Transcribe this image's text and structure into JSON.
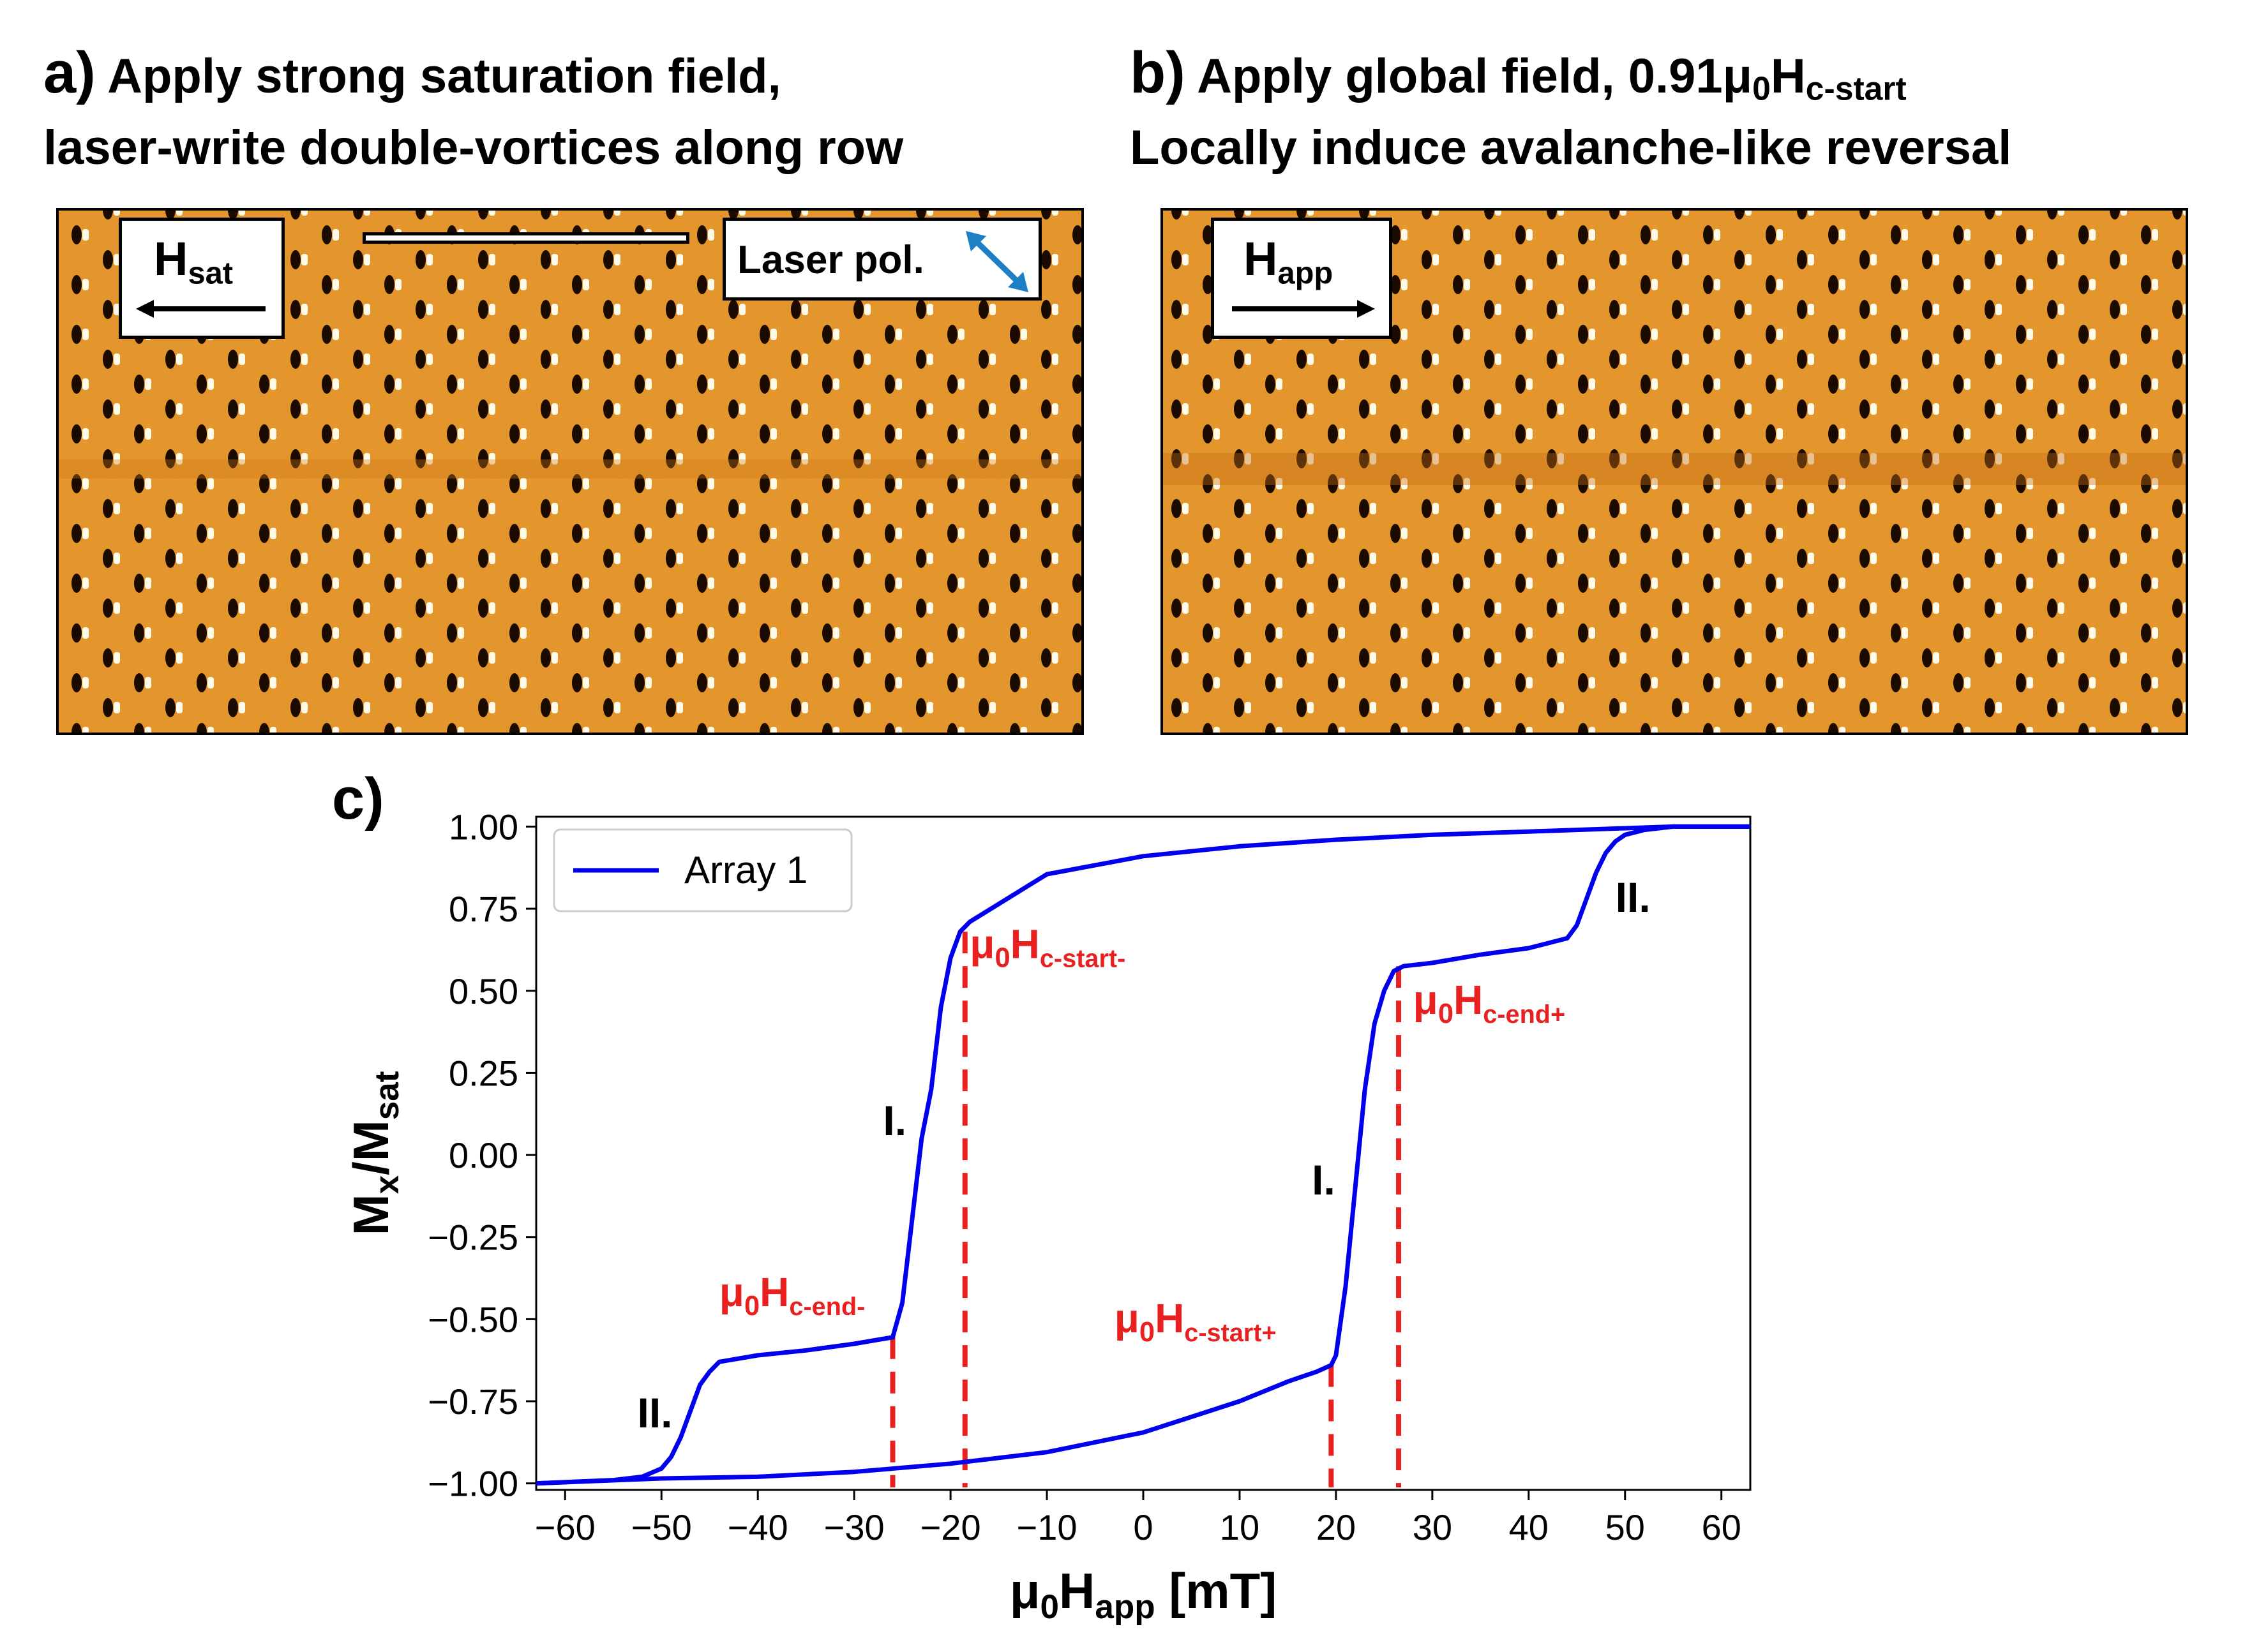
{
  "panel_a": {
    "letter": "a)",
    "line1": "Apply strong saturation field,",
    "line2": "laser-write double-vortices along row",
    "field_symbol": "H",
    "field_sub": "sat",
    "laser_label": "Laser pol."
  },
  "panel_b": {
    "letter": "b)",
    "line1_text": "Apply global field, 0.91μ",
    "line1_sub0": "0",
    "line1_H": "H",
    "line1_sub": "c-start",
    "line2": "Locally induce avalanche-like reversal",
    "field_symbol": "H",
    "field_sub": "app"
  },
  "panel_c": {
    "letter": "c)"
  },
  "colors": {
    "curve": "#0000ee",
    "dashed": "#e82020",
    "annotation_red": "#e82020",
    "microscope_bg": "#e8962a",
    "arrow_blue": "#1f7fc4"
  },
  "chart_data": {
    "type": "line",
    "xlabel_mu": "μ",
    "xlabel_sub0": "0",
    "xlabel_H": "H",
    "xlabel_sub": "app",
    "xlabel_unit": " [mT]",
    "ylabel_M": "M",
    "ylabel_x": "x",
    "ylabel_slash": "/M",
    "ylabel_sat": "sat",
    "xlim": [
      -63,
      63
    ],
    "ylim": [
      -1.02,
      1.03
    ],
    "xticks": [
      -60,
      -50,
      -40,
      -30,
      -20,
      -10,
      0,
      10,
      20,
      30,
      40,
      50,
      60
    ],
    "xtick_labels": [
      "−60",
      "−50",
      "−40",
      "−30",
      "−20",
      "−10",
      "0",
      "10",
      "20",
      "30",
      "40",
      "50",
      "60"
    ],
    "yticks": [
      -1.0,
      -0.75,
      -0.5,
      -0.25,
      0.0,
      0.25,
      0.5,
      0.75,
      1.0
    ],
    "ytick_labels": [
      "−1.00",
      "−0.75",
      "−0.50",
      "−0.25",
      "0.00",
      "0.25",
      "0.50",
      "0.75",
      "1.00"
    ],
    "legend": {
      "label": "Array 1",
      "placement": "top-left"
    },
    "series": [
      {
        "name": "Array 1",
        "descending": {
          "x": [
            63,
            55,
            50,
            40,
            30,
            20,
            10,
            0,
            -10,
            -18,
            -19,
            -20,
            -21,
            -22,
            -23,
            -24,
            -25,
            -26,
            -30,
            -35,
            -40,
            -44,
            -45,
            -46,
            -47,
            -48,
            -49,
            -50,
            -52,
            -55,
            -63
          ],
          "y": [
            1.0,
            1.0,
            0.995,
            0.985,
            0.975,
            0.96,
            0.94,
            0.91,
            0.855,
            0.71,
            0.68,
            0.6,
            0.45,
            0.2,
            0.05,
            -0.2,
            -0.45,
            -0.555,
            -0.575,
            -0.595,
            -0.61,
            -0.63,
            -0.66,
            -0.7,
            -0.78,
            -0.86,
            -0.92,
            -0.955,
            -0.98,
            -0.99,
            -1.0
          ]
        },
        "ascending": {
          "x": [
            -63,
            -50,
            -40,
            -30,
            -20,
            -10,
            0,
            10,
            15,
            18,
            19.5,
            20,
            21,
            22,
            23,
            24,
            25,
            26,
            27,
            30,
            35,
            40,
            44,
            45,
            46,
            47,
            48,
            49,
            50,
            52,
            55,
            63
          ],
          "y": [
            -1.0,
            -0.985,
            -0.98,
            -0.965,
            -0.94,
            -0.905,
            -0.845,
            -0.75,
            -0.69,
            -0.66,
            -0.64,
            -0.61,
            -0.4,
            -0.1,
            0.2,
            0.4,
            0.5,
            0.56,
            0.575,
            0.585,
            0.61,
            0.63,
            0.66,
            0.7,
            0.78,
            0.86,
            0.92,
            0.955,
            0.975,
            0.99,
            1.0,
            1.0
          ]
        }
      }
    ],
    "dashed_lines": [
      {
        "x": -26,
        "y_top": -0.555
      },
      {
        "x": -18.5,
        "y_top": 0.68
      },
      {
        "x": 19.5,
        "y_top": -0.64
      },
      {
        "x": 26.5,
        "y_top": 0.575
      }
    ],
    "annotations": [
      {
        "id": "start-minus",
        "mu": "μ",
        "sub0": "0",
        "H": "H",
        "sub": "c-start-",
        "color": "red",
        "x": -18,
        "y": 0.6
      },
      {
        "id": "end-plus",
        "mu": "μ",
        "sub0": "0",
        "H": "H",
        "sub": "c-end+",
        "color": "red",
        "x": 28,
        "y": 0.43
      },
      {
        "id": "end-minus",
        "mu": "μ",
        "sub0": "0",
        "H": "H",
        "sub": "c-end-",
        "color": "red",
        "x": -44,
        "y": -0.46
      },
      {
        "id": "start-plus",
        "mu": "μ",
        "sub0": "0",
        "H": "H",
        "sub": "c-start+",
        "color": "red",
        "x": -3,
        "y": -0.54
      },
      {
        "id": "I-left",
        "text": "I.",
        "color": "black",
        "x": -27,
        "y": 0.06
      },
      {
        "id": "I-right",
        "text": "I.",
        "color": "black",
        "x": 17.5,
        "y": -0.12
      },
      {
        "id": "II-left",
        "text": "II.",
        "color": "black",
        "x": -52.5,
        "y": -0.83
      },
      {
        "id": "II-right",
        "text": "II.",
        "color": "black",
        "x": 49,
        "y": 0.74
      }
    ]
  }
}
